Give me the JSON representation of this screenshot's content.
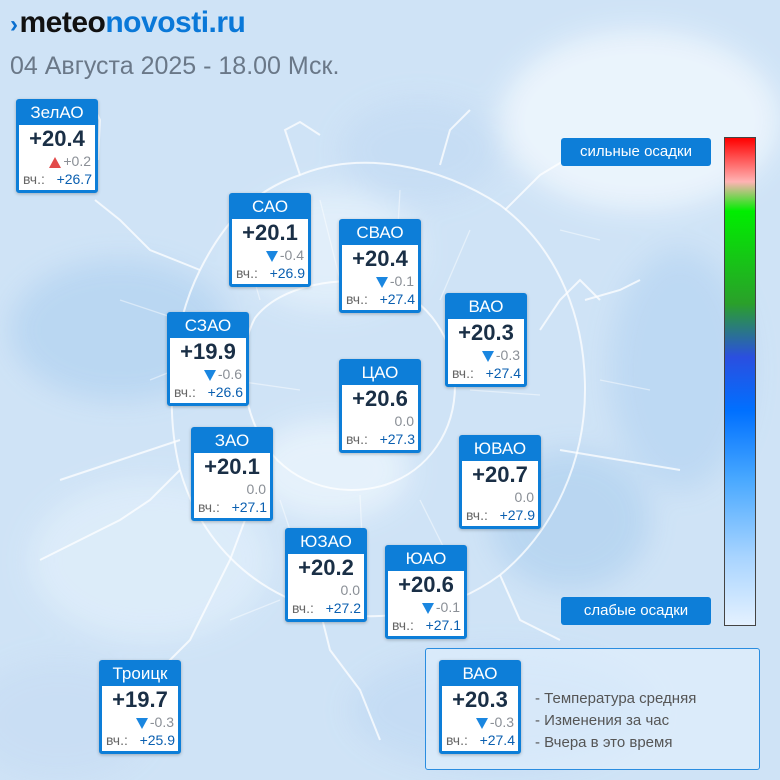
{
  "header": {
    "brand_mark": "›",
    "brand_part1": "meteo",
    "brand_part2": "novosti.ru",
    "datetime": "04 Августа 2025 - 18.00 Мск."
  },
  "yday_label": "вч.:",
  "districts": [
    {
      "name": "ЗелАО",
      "temp": "+20.4",
      "dir": "up",
      "change": "+0.2",
      "yesterday": "+26.7"
    },
    {
      "name": "САО",
      "temp": "+20.1",
      "dir": "down",
      "change": "-0.4",
      "yesterday": "+26.9"
    },
    {
      "name": "СВАО",
      "temp": "+20.4",
      "dir": "down",
      "change": "-0.1",
      "yesterday": "+27.4"
    },
    {
      "name": "ВАО",
      "temp": "+20.3",
      "dir": "down",
      "change": "-0.3",
      "yesterday": "+27.4"
    },
    {
      "name": "СЗАО",
      "temp": "+19.9",
      "dir": "down",
      "change": "-0.6",
      "yesterday": "+26.6"
    },
    {
      "name": "ЦАО",
      "temp": "+20.6",
      "dir": "none",
      "change": "0.0",
      "yesterday": "+27.3"
    },
    {
      "name": "ЗАО",
      "temp": "+20.1",
      "dir": "none",
      "change": "0.0",
      "yesterday": "+27.1"
    },
    {
      "name": "ЮВАО",
      "temp": "+20.7",
      "dir": "none",
      "change": "0.0",
      "yesterday": "+27.9"
    },
    {
      "name": "ЮЗАО",
      "temp": "+20.2",
      "dir": "none",
      "change": "0.0",
      "yesterday": "+27.2"
    },
    {
      "name": "ЮАО",
      "temp": "+20.6",
      "dir": "down",
      "change": "-0.1",
      "yesterday": "+27.1"
    },
    {
      "name": "Троицк",
      "temp": "+19.7",
      "dir": "down",
      "change": "-0.3",
      "yesterday": "+25.9"
    }
  ],
  "precip_scale": {
    "top_label": "сильные осадки",
    "bottom_label": "слабые осадки",
    "colors": [
      "#ff0000",
      "#00ee00",
      "#0070ff",
      "#e4f1ff"
    ]
  },
  "legend": {
    "sample": {
      "name": "ВАО",
      "temp": "+20.3",
      "dir": "down",
      "change": "-0.3",
      "yesterday": "+27.4"
    },
    "lines": [
      "- Температура средняя",
      "- Изменения за час",
      "- Вчера в это время"
    ]
  }
}
